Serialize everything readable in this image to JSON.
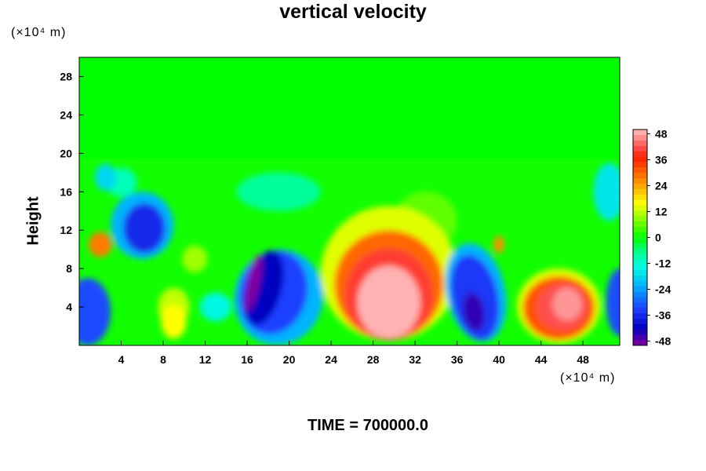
{
  "chart_data": {
    "type": "heatmap",
    "title": "vertical velocity",
    "ylabel": "Height",
    "y_unit_label": "(×10⁴ m)",
    "x_unit_label": "(×10⁴ m)",
    "footer": "TIME = 700000.0",
    "xlim": [
      0,
      51.5
    ],
    "ylim": [
      0,
      30
    ],
    "x_ticks": [
      "4",
      "8",
      "12",
      "16",
      "20",
      "24",
      "28",
      "32",
      "36",
      "40",
      "44",
      "48"
    ],
    "x_tick_values": [
      4,
      8,
      12,
      16,
      20,
      24,
      28,
      32,
      36,
      40,
      44,
      48
    ],
    "y_ticks": [
      "4",
      "8",
      "12",
      "16",
      "20",
      "24",
      "28"
    ],
    "y_tick_values": [
      4,
      8,
      12,
      16,
      20,
      24,
      28
    ],
    "colorbar": {
      "range": [
        -50,
        50
      ],
      "tick_labels": [
        "48",
        "36",
        "24",
        "12",
        "0",
        "-12",
        "-24",
        "-36",
        "-48"
      ],
      "tick_values": [
        48,
        36,
        24,
        12,
        0,
        -12,
        -24,
        -36,
        -48
      ]
    },
    "colormap_stops": [
      {
        "value": -50,
        "color": "#8000a0"
      },
      {
        "value": -42,
        "color": "#0000c0"
      },
      {
        "value": -33,
        "color": "#1e40ff"
      },
      {
        "value": -22,
        "color": "#00b4ff"
      },
      {
        "value": -13,
        "color": "#00ffe0"
      },
      {
        "value": -6,
        "color": "#00ff80"
      },
      {
        "value": 0,
        "color": "#00ff00"
      },
      {
        "value": 8,
        "color": "#80ff00"
      },
      {
        "value": 16,
        "color": "#ffff00"
      },
      {
        "value": 26,
        "color": "#ff9000"
      },
      {
        "value": 37,
        "color": "#ff2000"
      },
      {
        "value": 42,
        "color": "#ff5050"
      },
      {
        "value": 50,
        "color": "#ffc0c0"
      }
    ],
    "features": [
      {
        "name": "red updraft",
        "x": 29.5,
        "y": 5.5,
        "value": 48
      },
      {
        "name": "red updraft",
        "x": 46,
        "y": 4,
        "value": 40
      },
      {
        "name": "blue downdraft",
        "x": 18.5,
        "y": 5.5,
        "value": -42
      },
      {
        "name": "blue downdraft",
        "x": 37.5,
        "y": 5,
        "value": -40
      },
      {
        "name": "blue downdraft",
        "x": 6,
        "y": 12,
        "value": -36
      },
      {
        "name": "blue downdraft",
        "x": 1,
        "y": 3,
        "value": -30
      },
      {
        "name": "blue downdraft",
        "x": 51.5,
        "y": 4.5,
        "value": -30
      },
      {
        "name": "yellow updraft",
        "x": 2,
        "y": 10.5,
        "value": 28
      }
    ]
  }
}
